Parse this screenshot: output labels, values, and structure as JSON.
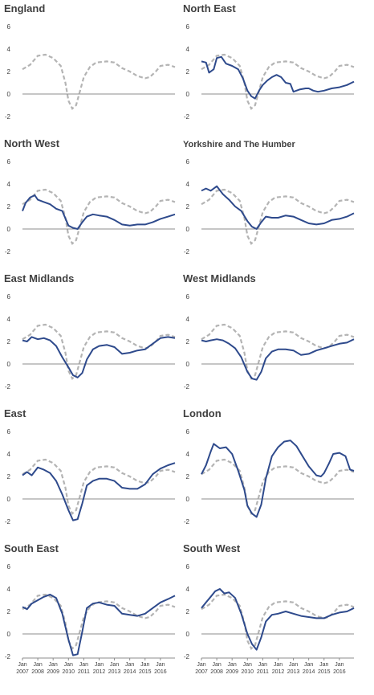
{
  "chart_data": {
    "type": "line",
    "y_ticks": [
      -2,
      0,
      2,
      4,
      6
    ],
    "ylim": [
      -2,
      6
    ],
    "x_tick_labels_top": [
      "Jan",
      "Jan",
      "Jan",
      "Jan",
      "Jan",
      "Jan",
      "Jan",
      "Jan",
      "Jan",
      "Jan"
    ],
    "x_tick_labels_bottom": [
      "2007",
      "2008",
      "2009",
      "2010",
      "2011",
      "2012",
      "2013",
      "2014",
      "2015",
      "2016"
    ],
    "x_years": [
      2007,
      2008,
      2009,
      2010,
      2011,
      2012,
      2013,
      2014,
      2015,
      2016
    ],
    "xlim": [
      2007.0,
      2016.95
    ],
    "colors": {
      "region": "#2e4a8c",
      "england": "#b4b4b4",
      "zero": "#8c8c8c"
    },
    "england_series": [
      [
        2007.0,
        2.2
      ],
      [
        2007.5,
        2.6
      ],
      [
        2008.0,
        3.4
      ],
      [
        2008.5,
        3.5
      ],
      [
        2009.0,
        3.2
      ],
      [
        2009.5,
        2.5
      ],
      [
        2009.8,
        1.0
      ],
      [
        2010.0,
        -0.6
      ],
      [
        2010.25,
        -1.3
      ],
      [
        2010.5,
        -1.0
      ],
      [
        2010.8,
        0.5
      ],
      [
        2011.0,
        1.5
      ],
      [
        2011.4,
        2.4
      ],
      [
        2011.8,
        2.8
      ],
      [
        2012.5,
        2.9
      ],
      [
        2013.0,
        2.8
      ],
      [
        2013.5,
        2.3
      ],
      [
        2014.0,
        2.0
      ],
      [
        2014.5,
        1.6
      ],
      [
        2015.0,
        1.4
      ],
      [
        2015.3,
        1.5
      ],
      [
        2015.7,
        2.0
      ],
      [
        2016.0,
        2.5
      ],
      [
        2016.5,
        2.6
      ],
      [
        2016.95,
        2.4
      ]
    ],
    "panels": [
      {
        "title": "England",
        "series": []
      },
      {
        "title": "North East",
        "series": [
          [
            2007.0,
            2.9
          ],
          [
            2007.3,
            2.8
          ],
          [
            2007.5,
            1.9
          ],
          [
            2007.8,
            2.2
          ],
          [
            2008.0,
            3.2
          ],
          [
            2008.3,
            3.3
          ],
          [
            2008.6,
            2.7
          ],
          [
            2009.0,
            2.5
          ],
          [
            2009.4,
            2.2
          ],
          [
            2009.7,
            1.4
          ],
          [
            2010.0,
            0.3
          ],
          [
            2010.25,
            -0.2
          ],
          [
            2010.5,
            -0.4
          ],
          [
            2010.8,
            0.4
          ],
          [
            2011.0,
            0.8
          ],
          [
            2011.3,
            1.2
          ],
          [
            2011.6,
            1.5
          ],
          [
            2011.9,
            1.7
          ],
          [
            2012.2,
            1.5
          ],
          [
            2012.5,
            1.0
          ],
          [
            2012.8,
            0.9
          ],
          [
            2013.0,
            0.2
          ],
          [
            2013.4,
            0.4
          ],
          [
            2013.8,
            0.5
          ],
          [
            2014.0,
            0.5
          ],
          [
            2014.3,
            0.3
          ],
          [
            2014.6,
            0.2
          ],
          [
            2015.0,
            0.3
          ],
          [
            2015.5,
            0.5
          ],
          [
            2016.0,
            0.6
          ],
          [
            2016.5,
            0.8
          ],
          [
            2016.95,
            1.1
          ]
        ]
      },
      {
        "title": "North West",
        "series": [
          [
            2007.0,
            1.6
          ],
          [
            2007.2,
            2.3
          ],
          [
            2007.5,
            2.8
          ],
          [
            2007.8,
            3.0
          ],
          [
            2008.0,
            2.6
          ],
          [
            2008.4,
            2.4
          ],
          [
            2008.8,
            2.2
          ],
          [
            2009.2,
            1.8
          ],
          [
            2009.6,
            1.6
          ],
          [
            2010.0,
            0.3
          ],
          [
            2010.3,
            0.1
          ],
          [
            2010.6,
            0.0
          ],
          [
            2010.9,
            0.6
          ],
          [
            2011.2,
            1.1
          ],
          [
            2011.6,
            1.3
          ],
          [
            2012.0,
            1.2
          ],
          [
            2012.5,
            1.1
          ],
          [
            2013.0,
            0.8
          ],
          [
            2013.5,
            0.4
          ],
          [
            2014.0,
            0.3
          ],
          [
            2014.5,
            0.4
          ],
          [
            2015.0,
            0.4
          ],
          [
            2015.5,
            0.6
          ],
          [
            2016.0,
            0.9
          ],
          [
            2016.5,
            1.1
          ],
          [
            2016.95,
            1.3
          ]
        ]
      },
      {
        "title": "Yorkshire and The Humber",
        "series": [
          [
            2007.0,
            3.4
          ],
          [
            2007.3,
            3.6
          ],
          [
            2007.6,
            3.4
          ],
          [
            2008.0,
            3.8
          ],
          [
            2008.4,
            3.1
          ],
          [
            2008.8,
            2.6
          ],
          [
            2009.2,
            2.0
          ],
          [
            2009.6,
            1.6
          ],
          [
            2010.0,
            0.7
          ],
          [
            2010.3,
            0.2
          ],
          [
            2010.6,
            0.0
          ],
          [
            2010.9,
            0.6
          ],
          [
            2011.2,
            1.1
          ],
          [
            2011.6,
            1.0
          ],
          [
            2012.0,
            1.0
          ],
          [
            2012.5,
            1.2
          ],
          [
            2013.0,
            1.1
          ],
          [
            2013.5,
            0.8
          ],
          [
            2014.0,
            0.5
          ],
          [
            2014.5,
            0.4
          ],
          [
            2015.0,
            0.5
          ],
          [
            2015.5,
            0.8
          ],
          [
            2016.0,
            0.9
          ],
          [
            2016.5,
            1.1
          ],
          [
            2016.95,
            1.4
          ]
        ]
      },
      {
        "title": "East Midlands",
        "series": [
          [
            2007.0,
            2.1
          ],
          [
            2007.3,
            2.0
          ],
          [
            2007.6,
            2.4
          ],
          [
            2008.0,
            2.2
          ],
          [
            2008.4,
            2.3
          ],
          [
            2008.8,
            2.1
          ],
          [
            2009.2,
            1.6
          ],
          [
            2009.6,
            0.6
          ],
          [
            2010.0,
            -0.3
          ],
          [
            2010.3,
            -1.0
          ],
          [
            2010.6,
            -1.2
          ],
          [
            2010.9,
            -0.8
          ],
          [
            2011.2,
            0.4
          ],
          [
            2011.6,
            1.3
          ],
          [
            2012.0,
            1.6
          ],
          [
            2012.5,
            1.7
          ],
          [
            2013.0,
            1.5
          ],
          [
            2013.5,
            0.9
          ],
          [
            2014.0,
            1.0
          ],
          [
            2014.5,
            1.2
          ],
          [
            2015.0,
            1.3
          ],
          [
            2015.5,
            1.8
          ],
          [
            2016.0,
            2.3
          ],
          [
            2016.5,
            2.4
          ],
          [
            2016.95,
            2.3
          ]
        ]
      },
      {
        "title": "West Midlands",
        "series": [
          [
            2007.0,
            2.1
          ],
          [
            2007.3,
            2.0
          ],
          [
            2007.6,
            2.1
          ],
          [
            2008.0,
            2.2
          ],
          [
            2008.4,
            2.1
          ],
          [
            2008.8,
            1.8
          ],
          [
            2009.2,
            1.4
          ],
          [
            2009.6,
            0.6
          ],
          [
            2010.0,
            -0.7
          ],
          [
            2010.3,
            -1.3
          ],
          [
            2010.6,
            -1.4
          ],
          [
            2010.9,
            -0.7
          ],
          [
            2011.2,
            0.5
          ],
          [
            2011.6,
            1.1
          ],
          [
            2012.0,
            1.3
          ],
          [
            2012.5,
            1.3
          ],
          [
            2013.0,
            1.2
          ],
          [
            2013.5,
            0.8
          ],
          [
            2014.0,
            0.9
          ],
          [
            2014.5,
            1.2
          ],
          [
            2015.0,
            1.4
          ],
          [
            2015.5,
            1.6
          ],
          [
            2016.0,
            1.8
          ],
          [
            2016.5,
            1.9
          ],
          [
            2016.95,
            2.2
          ]
        ]
      },
      {
        "title": "East",
        "series": [
          [
            2007.0,
            2.1
          ],
          [
            2007.3,
            2.4
          ],
          [
            2007.6,
            2.1
          ],
          [
            2008.0,
            2.8
          ],
          [
            2008.4,
            2.6
          ],
          [
            2008.8,
            2.3
          ],
          [
            2009.2,
            1.6
          ],
          [
            2009.6,
            0.4
          ],
          [
            2010.0,
            -1.0
          ],
          [
            2010.3,
            -1.9
          ],
          [
            2010.6,
            -1.8
          ],
          [
            2010.9,
            -0.4
          ],
          [
            2011.2,
            1.2
          ],
          [
            2011.6,
            1.6
          ],
          [
            2012.0,
            1.8
          ],
          [
            2012.5,
            1.8
          ],
          [
            2013.0,
            1.6
          ],
          [
            2013.5,
            1.0
          ],
          [
            2014.0,
            0.9
          ],
          [
            2014.5,
            0.9
          ],
          [
            2015.0,
            1.3
          ],
          [
            2015.5,
            2.2
          ],
          [
            2016.0,
            2.7
          ],
          [
            2016.5,
            3.0
          ],
          [
            2016.95,
            3.2
          ]
        ]
      },
      {
        "title": "London",
        "series": [
          [
            2007.0,
            2.2
          ],
          [
            2007.3,
            3.0
          ],
          [
            2007.6,
            4.2
          ],
          [
            2007.8,
            4.9
          ],
          [
            2008.2,
            4.5
          ],
          [
            2008.6,
            4.6
          ],
          [
            2009.0,
            4.0
          ],
          [
            2009.4,
            2.5
          ],
          [
            2009.8,
            0.8
          ],
          [
            2010.0,
            -0.6
          ],
          [
            2010.3,
            -1.3
          ],
          [
            2010.6,
            -1.6
          ],
          [
            2010.9,
            -0.5
          ],
          [
            2011.2,
            1.8
          ],
          [
            2011.6,
            3.8
          ],
          [
            2012.0,
            4.6
          ],
          [
            2012.4,
            5.1
          ],
          [
            2012.8,
            5.2
          ],
          [
            2013.2,
            4.7
          ],
          [
            2013.6,
            3.8
          ],
          [
            2014.0,
            2.9
          ],
          [
            2014.5,
            2.1
          ],
          [
            2014.8,
            2.0
          ],
          [
            2015.0,
            2.3
          ],
          [
            2015.3,
            3.1
          ],
          [
            2015.6,
            4.0
          ],
          [
            2016.0,
            4.1
          ],
          [
            2016.4,
            3.8
          ],
          [
            2016.7,
            2.6
          ],
          [
            2016.95,
            2.5
          ]
        ]
      },
      {
        "title": "South East",
        "series": [
          [
            2007.0,
            2.4
          ],
          [
            2007.3,
            2.2
          ],
          [
            2007.6,
            2.7
          ],
          [
            2008.0,
            3.0
          ],
          [
            2008.4,
            3.3
          ],
          [
            2008.8,
            3.5
          ],
          [
            2009.2,
            3.2
          ],
          [
            2009.6,
            1.8
          ],
          [
            2010.0,
            -0.5
          ],
          [
            2010.3,
            -1.9
          ],
          [
            2010.6,
            -1.8
          ],
          [
            2010.9,
            0.2
          ],
          [
            2011.2,
            2.3
          ],
          [
            2011.6,
            2.7
          ],
          [
            2012.0,
            2.8
          ],
          [
            2012.5,
            2.6
          ],
          [
            2013.0,
            2.5
          ],
          [
            2013.5,
            1.8
          ],
          [
            2014.0,
            1.7
          ],
          [
            2014.5,
            1.6
          ],
          [
            2015.0,
            1.8
          ],
          [
            2015.5,
            2.3
          ],
          [
            2016.0,
            2.8
          ],
          [
            2016.5,
            3.1
          ],
          [
            2016.95,
            3.4
          ]
        ]
      },
      {
        "title": "South West",
        "series": [
          [
            2007.0,
            2.3
          ],
          [
            2007.3,
            2.8
          ],
          [
            2007.6,
            3.3
          ],
          [
            2007.9,
            3.8
          ],
          [
            2008.2,
            4.0
          ],
          [
            2008.5,
            3.6
          ],
          [
            2008.8,
            3.7
          ],
          [
            2009.2,
            3.2
          ],
          [
            2009.6,
            1.8
          ],
          [
            2010.0,
            0.0
          ],
          [
            2010.3,
            -0.9
          ],
          [
            2010.6,
            -1.4
          ],
          [
            2010.9,
            -0.3
          ],
          [
            2011.2,
            1.1
          ],
          [
            2011.6,
            1.7
          ],
          [
            2012.0,
            1.8
          ],
          [
            2012.5,
            2.0
          ],
          [
            2013.0,
            1.8
          ],
          [
            2013.5,
            1.6
          ],
          [
            2014.0,
            1.5
          ],
          [
            2014.5,
            1.4
          ],
          [
            2015.0,
            1.4
          ],
          [
            2015.5,
            1.7
          ],
          [
            2016.0,
            1.9
          ],
          [
            2016.5,
            2.0
          ],
          [
            2016.95,
            2.3
          ]
        ]
      }
    ]
  }
}
